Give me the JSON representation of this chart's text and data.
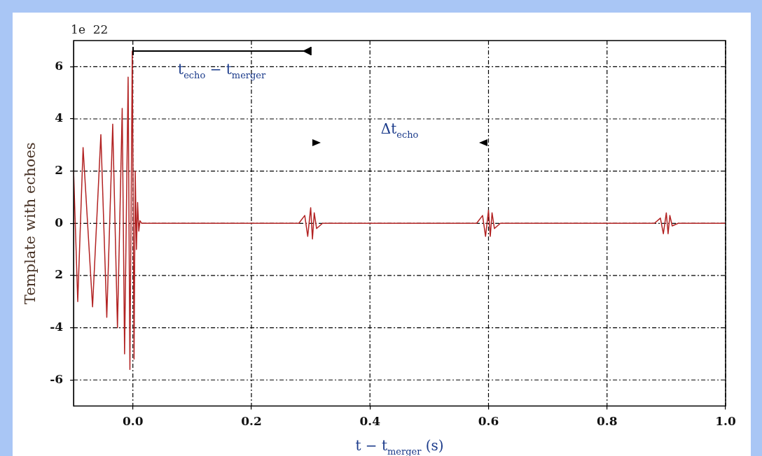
{
  "chart_data": {
    "type": "line",
    "xlabel": "t − t$_{merger}$ (s)",
    "ylabel": "Template with echoes",
    "x": [
      -0.1,
      -0.093,
      -0.084,
      -0.068,
      -0.054,
      -0.044,
      -0.034,
      -0.026,
      -0.018,
      -0.014,
      -0.008,
      -0.005,
      -0.001,
      0.002,
      0.004,
      0.006,
      0.008,
      0.01,
      0.012,
      0.015,
      0.28,
      0.29,
      0.295,
      0.3,
      0.303,
      0.306,
      0.31,
      0.32,
      0.58,
      0.59,
      0.595,
      0.6,
      0.603,
      0.606,
      0.61,
      0.62,
      0.88,
      0.89,
      0.895,
      0.9,
      0.903,
      0.906,
      0.91,
      0.92,
      1.0
    ],
    "series": [
      {
        "color": "#b22222",
        "values": [
          2.0,
          -3.0,
          2.9,
          -3.2,
          3.4,
          -3.6,
          3.8,
          -4.0,
          4.4,
          -5.0,
          5.6,
          -5.6,
          6.6,
          -5.2,
          2.0,
          -1.0,
          0.8,
          -0.3,
          0.1,
          0,
          0,
          0.3,
          -0.5,
          0.6,
          -0.6,
          0.4,
          -0.2,
          0,
          0,
          0.3,
          -0.5,
          0.5,
          -0.5,
          0.4,
          -0.2,
          0,
          0,
          0.2,
          -0.4,
          0.4,
          -0.4,
          0.3,
          -0.1,
          0,
          0
        ]
      }
    ],
    "xlim": [
      -0.1,
      1.0
    ],
    "xticks": [
      {
        "value": 0,
        "label": "0.0"
      },
      0.2,
      0.4,
      0.6,
      0.8,
      {
        "value": 1,
        "label": "1.0"
      }
    ],
    "ylim": [
      -7,
      7
    ],
    "yticks": [
      -6,
      -4,
      {
        "value": -2,
        "label": "2"
      },
      0,
      2,
      4,
      6
    ],
    "grid": true,
    "line_style": "solid",
    "marker": "none",
    "annotations": [
      "1e  22",
      "t$_{echo}$ − t$_{merger}$",
      "Δt$_{echo}$"
    ]
  }
}
